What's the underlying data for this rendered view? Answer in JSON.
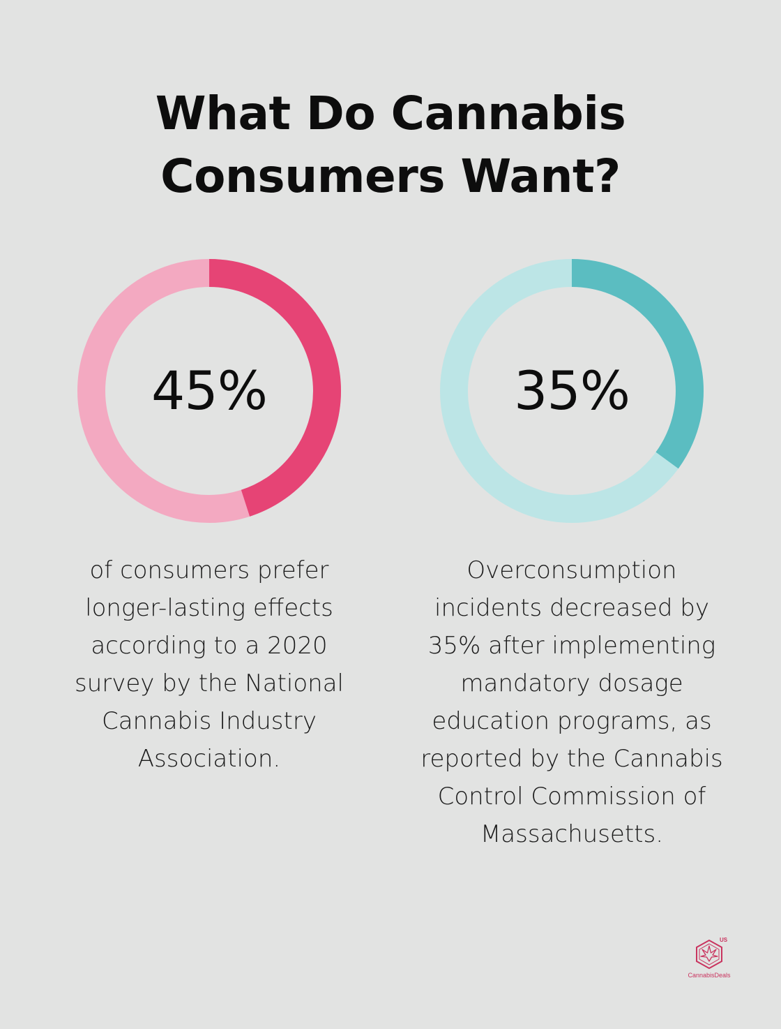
{
  "title_line1": "What Do Cannabis",
  "title_line2": "Consumers Want?",
  "chart_data": [
    {
      "type": "pie",
      "variant": "donut",
      "value": 45,
      "value_label": "45%",
      "max": 100,
      "caption": "of consumers prefer longer-lasting effects according to a 2020 survey by the National Cannabis Industry Association.",
      "caption_lines": [
        "of consumers prefer",
        "longer-lasting effects",
        "according to a 2020",
        "survey by the National",
        "Cannabis Industry",
        "Association."
      ],
      "colors": {
        "filled": "#e64475",
        "track": "#f3a9c1"
      }
    },
    {
      "type": "pie",
      "variant": "donut",
      "value": 35,
      "value_label": "35%",
      "max": 100,
      "caption": "Overconsumption incidents decreased by 35% after implementing mandatory dosage education programs, as reported by the Cannabis Control Commission of Massachusetts.",
      "caption_lines": [
        "Overconsumption",
        "incidents decreased by",
        "35% after implementing",
        "mandatory dosage",
        "education programs, as",
        "reported by the Cannabis",
        "Control Commission of",
        "Massachusetts."
      ],
      "colors": {
        "filled": "#5bbdc1",
        "track": "#bce5e6"
      }
    }
  ],
  "logo": {
    "icon": "cannabis-leaf-hexagon-icon",
    "superscript": "US",
    "text": "CannabisDeals",
    "color": "#c9345f"
  }
}
